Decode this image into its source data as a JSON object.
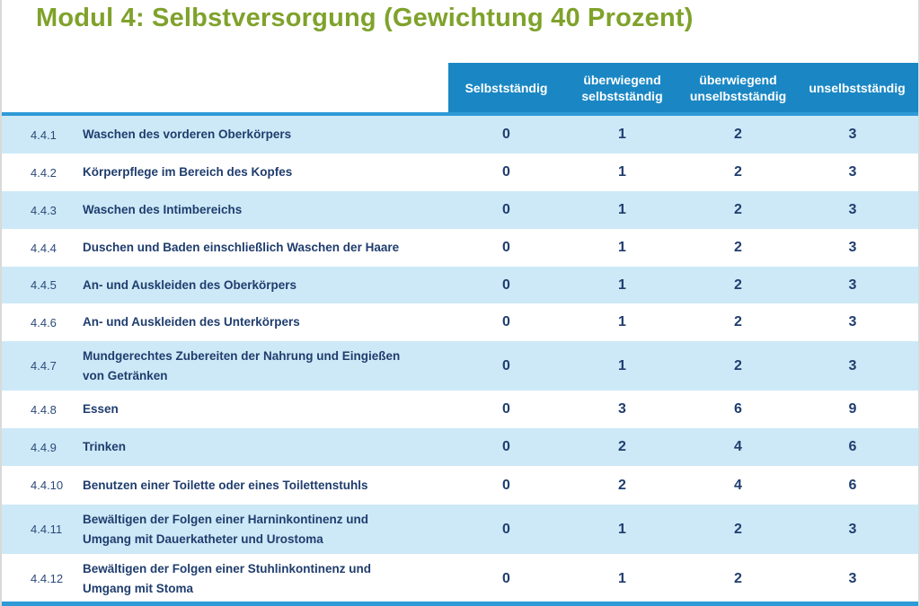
{
  "title": "Modul 4: Selbstversorgung (Gewichtung 40 Prozent)",
  "columns": [
    "Selbstständig",
    "überwiegend\nselbstständig",
    "überwiegend\nunselbstständig",
    "unselbstständig"
  ],
  "rows": [
    {
      "num": "4.4.1",
      "label": "Waschen des vorderen Oberkörpers",
      "values": [
        "0",
        "1",
        "2",
        "3"
      ]
    },
    {
      "num": "4.4.2",
      "label": "Körperpflege im Bereich des Kopfes",
      "values": [
        "0",
        "1",
        "2",
        "3"
      ]
    },
    {
      "num": "4.4.3",
      "label": "Waschen des Intimbereichs",
      "values": [
        "0",
        "1",
        "2",
        "3"
      ]
    },
    {
      "num": "4.4.4",
      "label": "Duschen und Baden einschließlich Waschen der Haare",
      "values": [
        "0",
        "1",
        "2",
        "3"
      ]
    },
    {
      "num": "4.4.5",
      "label": "An- und Auskleiden des Oberkörpers",
      "values": [
        "0",
        "1",
        "2",
        "3"
      ]
    },
    {
      "num": "4.4.6",
      "label": "An- und Auskleiden des Unterkörpers",
      "values": [
        "0",
        "1",
        "2",
        "3"
      ]
    },
    {
      "num": "4.4.7",
      "label": "Mundgerechtes Zubereiten der Nahrung und Eingießen\nvon Getränken",
      "values": [
        "0",
        "1",
        "2",
        "3"
      ]
    },
    {
      "num": "4.4.8",
      "label": "Essen",
      "values": [
        "0",
        "3",
        "6",
        "9"
      ]
    },
    {
      "num": "4.4.9",
      "label": "Trinken",
      "values": [
        "0",
        "2",
        "4",
        "6"
      ]
    },
    {
      "num": "4.4.10",
      "label": "Benutzen einer Toilette oder eines Toilettenstuhls",
      "values": [
        "0",
        "2",
        "4",
        "6"
      ]
    },
    {
      "num": "4.4.11",
      "label": "Bewältigen der Folgen einer Harninkontinenz und\nUmgang mit Dauerkatheter und Urostoma",
      "values": [
        "0",
        "1",
        "2",
        "3"
      ]
    },
    {
      "num": "4.4.12",
      "label": "Bewältigen der Folgen einer Stuhlinkontinenz und\nUmgang mit Stoma",
      "values": [
        "0",
        "1",
        "2",
        "3"
      ]
    }
  ],
  "colors": {
    "title": "#7fa22b",
    "header_bg": "#1a87c4",
    "row_band": "#cde9f7",
    "text": "#1f3d6e"
  }
}
